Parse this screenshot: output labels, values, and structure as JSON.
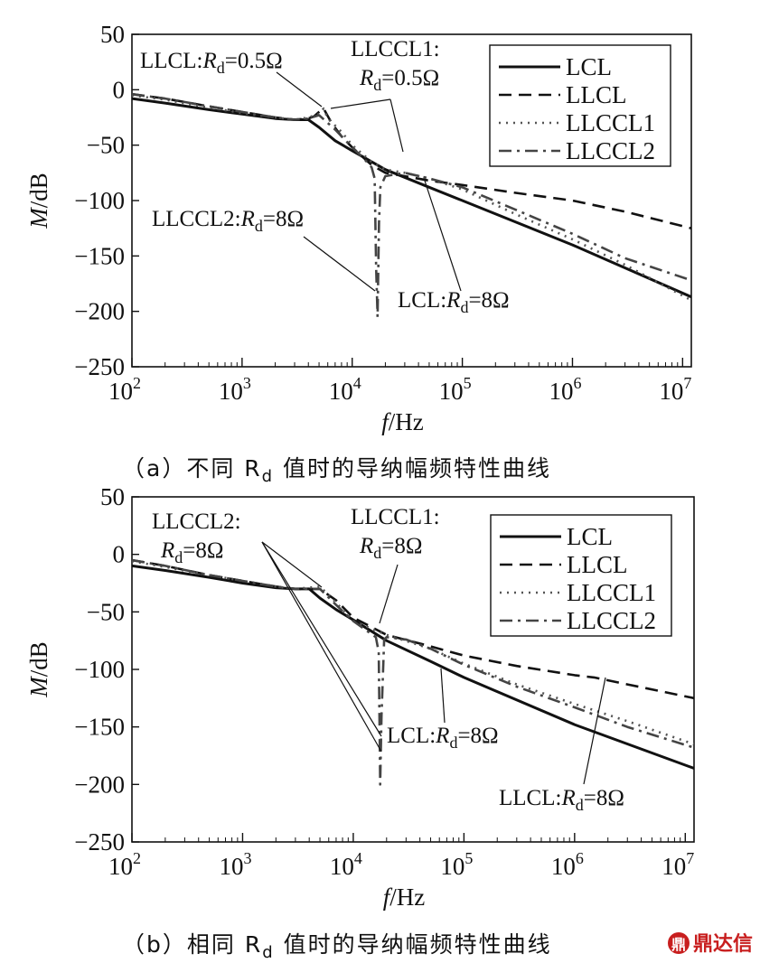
{
  "chart_data": [
    {
      "panel": "a",
      "type": "line",
      "xscale": "log",
      "xlim": [
        100,
        12000000
      ],
      "ylim": [
        -250,
        50
      ],
      "xlabel_var": "f",
      "xlabel_unit": "/Hz",
      "ylabel_var": "M",
      "ylabel_unit": "/dB",
      "xticks": [
        100,
        1000,
        10000,
        100000,
        1000000,
        10000000
      ],
      "xtick_labels": [
        "10",
        "10",
        "10",
        "10",
        "10",
        "10"
      ],
      "xtick_exponents": [
        "2",
        "3",
        "4",
        "5",
        "6",
        "7"
      ],
      "yticks": [
        50,
        0,
        -50,
        -100,
        -150,
        -200,
        -250
      ],
      "ytick_labels": [
        "50",
        "0",
        "−50",
        "−100",
        "−150",
        "−200",
        "−250"
      ],
      "legend": [
        "LCL",
        "LLCL",
        "LLCCL1",
        "LLCCL2"
      ],
      "legend_position": "top-right",
      "caption": "（a）不同 R",
      "caption_sub": "d",
      "caption_rest": " 值时的导纳幅频特性曲线",
      "series": [
        {
          "name": "LCL",
          "style": "solid",
          "x": [
            100,
            200,
            500,
            1000,
            2000,
            3000,
            4000,
            5000,
            7000,
            10000,
            20000,
            50000,
            100000,
            1000000,
            12000000
          ],
          "y": [
            -8,
            -12,
            -18,
            -22,
            -26,
            -27,
            -27,
            -34,
            -46,
            -55,
            -72,
            -88,
            -100,
            -140,
            -187
          ]
        },
        {
          "name": "LLCL",
          "style": "dashed",
          "x": [
            100,
            200,
            500,
            1000,
            2000,
            3000,
            4000,
            4500,
            5000,
            5500,
            6500,
            8000,
            10000,
            15000,
            20000,
            30000,
            50000,
            100000,
            300000,
            1000000,
            3000000,
            12000000
          ],
          "y": [
            -4,
            -8,
            -15,
            -20,
            -25,
            -27,
            -26,
            -24,
            -20,
            -17,
            -30,
            -42,
            -52,
            -68,
            -75,
            -78,
            -82,
            -86,
            -93,
            -100,
            -110,
            -125
          ]
        },
        {
          "name": "LLCCL1",
          "style": "dotted",
          "x": [
            100,
            200,
            500,
            1000,
            2000,
            3000,
            4000,
            5000,
            5500,
            6000,
            8000,
            10000,
            15000,
            20000,
            30000,
            50000,
            100000,
            300000,
            1000000,
            3000000,
            12000000
          ],
          "y": [
            -5,
            -9,
            -16,
            -21,
            -25,
            -27,
            -25,
            -22,
            -17,
            -26,
            -38,
            -50,
            -65,
            -72,
            -75,
            -80,
            -90,
            -112,
            -135,
            -158,
            -190
          ]
        },
        {
          "name": "LLCCL2",
          "style": "dashdot",
          "x": [
            100,
            200,
            500,
            1000,
            2000,
            3000,
            4000,
            5000,
            7000,
            10000,
            13000,
            15000,
            16000,
            16500,
            17000,
            17500,
            18000,
            20000,
            30000,
            50000,
            100000,
            300000,
            1000000,
            3000000,
            12000000
          ],
          "y": [
            -4,
            -8,
            -15,
            -20,
            -25,
            -27,
            -26,
            -23,
            -36,
            -52,
            -63,
            -70,
            -80,
            -160,
            -205,
            -120,
            -88,
            -78,
            -75,
            -80,
            -88,
            -108,
            -130,
            -152,
            -172
          ]
        }
      ],
      "annotations": [
        {
          "text": "LLCL:",
          "var": "R",
          "sub": "d",
          "value": "=0.5Ω"
        },
        {
          "text": "LLCCL1:",
          "var": "R",
          "sub": "d",
          "value": "=0.5Ω"
        },
        {
          "text": "LLCCL2:",
          "var": "R",
          "sub": "d",
          "value": "=8Ω"
        },
        {
          "text": "LCL:",
          "var": "R",
          "sub": "d",
          "value": "=8Ω"
        }
      ]
    },
    {
      "panel": "b",
      "type": "line",
      "xscale": "log",
      "xlim": [
        100,
        12000000
      ],
      "ylim": [
        -250,
        50
      ],
      "xlabel_var": "f",
      "xlabel_unit": "/Hz",
      "ylabel_var": "M",
      "ylabel_unit": "/dB",
      "xticks": [
        100,
        1000,
        10000,
        100000,
        1000000,
        10000000
      ],
      "xtick_labels": [
        "10",
        "10",
        "10",
        "10",
        "10",
        "10"
      ],
      "xtick_exponents": [
        "2",
        "3",
        "4",
        "5",
        "6",
        "7"
      ],
      "yticks": [
        50,
        0,
        -50,
        -100,
        -150,
        -200,
        -250
      ],
      "ytick_labels": [
        "50",
        "0",
        "−50",
        "−100",
        "−150",
        "−200",
        "−250"
      ],
      "legend": [
        "LCL",
        "LLCL",
        "LLCCL1",
        "LLCCL2"
      ],
      "legend_position": "top-right",
      "caption": "（b）相同 R",
      "caption_sub": "d",
      "caption_rest": " 值时的导纳幅频特性曲线",
      "series": [
        {
          "name": "LCL",
          "style": "solid",
          "x": [
            100,
            200,
            500,
            1000,
            2000,
            3000,
            4000,
            5000,
            7000,
            10000,
            20000,
            50000,
            100000,
            1000000,
            12000000
          ],
          "y": [
            -10,
            -14,
            -20,
            -25,
            -29,
            -30,
            -30,
            -38,
            -48,
            -57,
            -75,
            -93,
            -107,
            -148,
            -186
          ]
        },
        {
          "name": "LLCL",
          "style": "dashed",
          "x": [
            100,
            200,
            500,
            1000,
            2000,
            3000,
            5000,
            7000,
            10000,
            20000,
            50000,
            100000,
            300000,
            1000000,
            1500000,
            3000000,
            12000000
          ],
          "y": [
            -5,
            -10,
            -18,
            -23,
            -28,
            -30,
            -30,
            -40,
            -55,
            -70,
            -80,
            -88,
            -97,
            -105,
            -107,
            -113,
            -125
          ]
        },
        {
          "name": "LLCCL1",
          "style": "dotted",
          "x": [
            100,
            200,
            500,
            1000,
            2000,
            3000,
            5000,
            7000,
            10000,
            20000,
            50000,
            100000,
            300000,
            1000000,
            3000000,
            12000000
          ],
          "y": [
            -6,
            -11,
            -18,
            -23,
            -28,
            -30,
            -28,
            -42,
            -58,
            -70,
            -82,
            -95,
            -113,
            -130,
            -145,
            -165
          ]
        },
        {
          "name": "LLCCL2",
          "style": "dashdot",
          "x": [
            100,
            200,
            500,
            1000,
            2000,
            3000,
            5000,
            7000,
            10000,
            14000,
            16000,
            17000,
            17500,
            18000,
            19000,
            20000,
            30000,
            50000,
            100000,
            300000,
            1000000,
            3000000,
            12000000
          ],
          "y": [
            -5,
            -10,
            -18,
            -23,
            -28,
            -30,
            -30,
            -44,
            -58,
            -68,
            -72,
            -85,
            -200,
            -140,
            -74,
            -72,
            -74,
            -82,
            -96,
            -115,
            -133,
            -150,
            -168
          ]
        }
      ],
      "annotations": [
        {
          "text": "LLCCL2:",
          "var": "R",
          "sub": "d",
          "value": "=8Ω"
        },
        {
          "text": "LLCCL1:",
          "var": "R",
          "sub": "d",
          "value": "=8Ω"
        },
        {
          "text": "LCL:",
          "var": "R",
          "sub": "d",
          "value": "=8Ω"
        },
        {
          "text": "LLCL:",
          "var": "R",
          "sub": "d",
          "value": "=8Ω"
        }
      ]
    }
  ],
  "watermark": "鼎达信",
  "watermark_icon": "ding-logo-icon"
}
